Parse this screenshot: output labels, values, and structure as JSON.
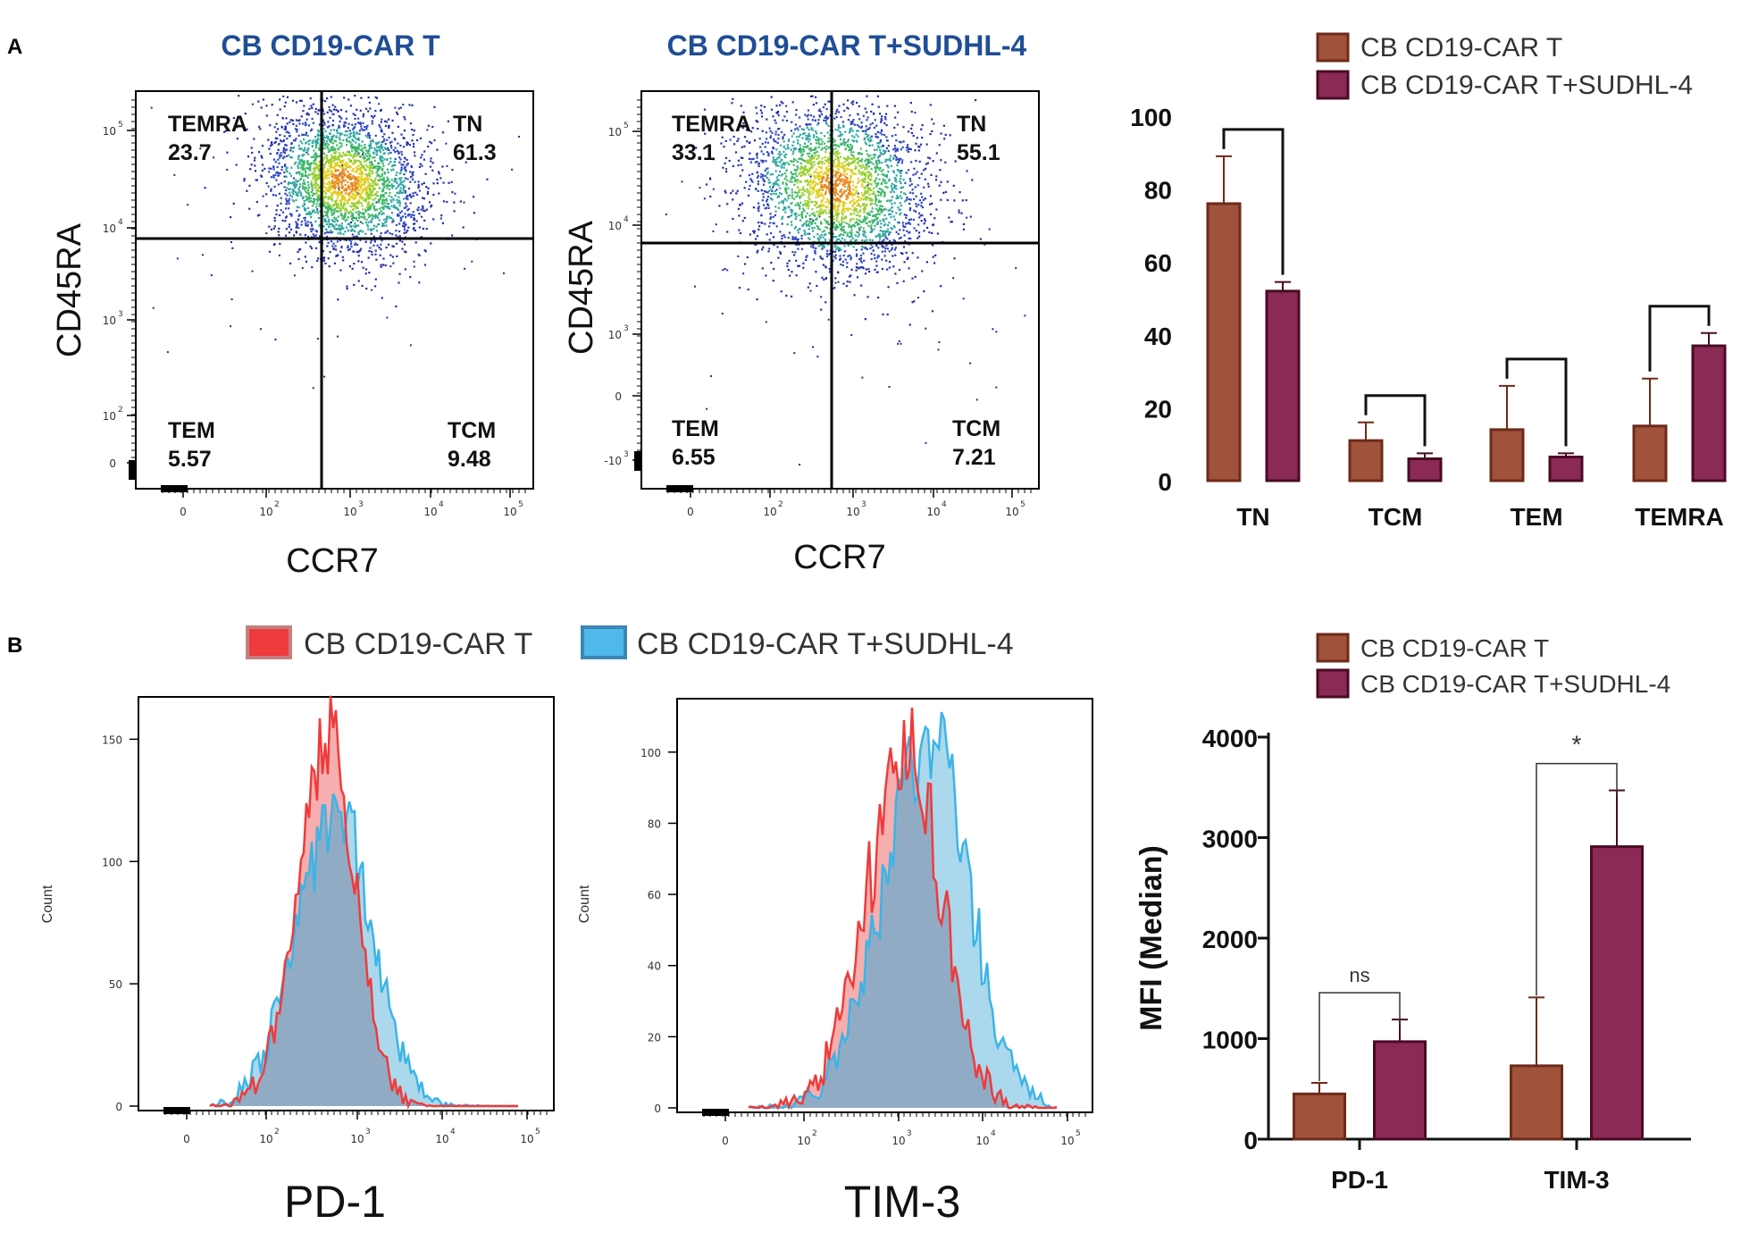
{
  "panel_labels": {
    "a": "A",
    "b": "B"
  },
  "colors": {
    "title_blue": "#1f4e96",
    "bar_brown": "#a0523a",
    "bar_brown_edge": "#6e2a1a",
    "bar_maroon": "#8b2a55",
    "bar_maroon_edge": "#4a0a24",
    "hist_red": "#ee3b3b",
    "hist_blue": "#3cb4e6",
    "hist_overlap": "#8fa9c2"
  },
  "flow_plots": [
    {
      "title": "CB CD19-CAR T",
      "x_label": "CCR7",
      "y_label": "CD45RA",
      "quadrants": [
        {
          "name": "TEMRA",
          "value": "23.7"
        },
        {
          "name": "TN",
          "value": "61.3"
        },
        {
          "name": "TEM",
          "value": "5.57"
        },
        {
          "name": "TCM",
          "value": "9.48"
        }
      ],
      "x_ticks": [
        "0",
        "10",
        "10",
        "10",
        "10"
      ],
      "x_tick_exp": [
        "",
        "2",
        "3",
        "4",
        "5"
      ],
      "y_ticks": [
        "0",
        "10",
        "10",
        "10",
        "10"
      ],
      "y_tick_exp": [
        "",
        "2",
        "3",
        "4",
        "5"
      ]
    },
    {
      "title": "CB CD19-CAR T+SUDHL-4",
      "x_label": "CCR7",
      "y_label": "CD45RA",
      "quadrants": [
        {
          "name": "TEMRA",
          "value": "33.1"
        },
        {
          "name": "TN",
          "value": "55.1"
        },
        {
          "name": "TEM",
          "value": "6.55"
        },
        {
          "name": "TCM",
          "value": "7.21"
        }
      ],
      "x_ticks": [
        "0",
        "10",
        "10",
        "10",
        "10"
      ],
      "x_tick_exp": [
        "",
        "2",
        "3",
        "4",
        "5"
      ],
      "y_ticks": [
        "-10",
        "0",
        "10",
        "10",
        "10"
      ],
      "y_tick_exp": [
        "3",
        "",
        "3",
        "4",
        "5"
      ]
    }
  ],
  "histograms": {
    "legend": [
      "CB CD19-CAR T",
      "CB CD19-CAR T+SUDHL-4"
    ],
    "plots": [
      {
        "x_label": "PD-1",
        "y_label": "Count",
        "y_ticks": [
          "0",
          "50",
          "100",
          "150"
        ],
        "y_max": 160
      },
      {
        "x_label": "TIM-3",
        "y_label": "Count",
        "y_ticks": [
          "0",
          "20",
          "40",
          "60",
          "80",
          "100"
        ],
        "y_max": 110
      }
    ],
    "x_ticks": [
      "0",
      "10",
      "10",
      "10",
      "10"
    ],
    "x_tick_exp": [
      "",
      "2",
      "3",
      "4",
      "5"
    ]
  },
  "chart_data": [
    {
      "type": "bar",
      "title": "",
      "xlabel": "",
      "ylabel": "",
      "ylim": [
        0,
        100
      ],
      "y_ticks": [
        "0",
        "20",
        "40",
        "60",
        "80",
        "100"
      ],
      "legend": "top-right",
      "categories": [
        "TN",
        "TCM",
        "TEM",
        "TEMRA"
      ],
      "series": [
        {
          "name": "CB CD19-CAR T",
          "values": [
            76,
            11,
            14,
            15
          ],
          "errors": [
            13,
            5,
            12,
            13
          ]
        },
        {
          "name": "CB CD19-CAR T+SUDHL-4",
          "values": [
            52,
            6,
            6.5,
            37
          ],
          "errors": [
            2.5,
            1.5,
            1,
            3.5
          ]
        }
      ],
      "annotations": [
        {
          "category": "TN",
          "text": ""
        },
        {
          "category": "TCM",
          "text": ""
        },
        {
          "category": "TEM",
          "text": ""
        },
        {
          "category": "TEMRA",
          "text": ""
        }
      ]
    },
    {
      "type": "bar",
      "title": "",
      "xlabel": "",
      "ylabel": "MFI (Median)",
      "ylim": [
        0,
        4000
      ],
      "y_ticks": [
        "0",
        "1000",
        "2000",
        "3000",
        "4000"
      ],
      "legend": "top-right",
      "categories": [
        "PD-1",
        "TIM-3"
      ],
      "series": [
        {
          "name": "CB CD19-CAR T",
          "values": [
            450,
            730
          ],
          "errors": [
            110,
            680
          ]
        },
        {
          "name": "CB CD19-CAR T+SUDHL-4",
          "values": [
            970,
            2910
          ],
          "errors": [
            220,
            560
          ]
        }
      ],
      "annotations": [
        {
          "category": "PD-1",
          "text": "ns"
        },
        {
          "category": "TIM-3",
          "text": "*"
        }
      ]
    }
  ]
}
